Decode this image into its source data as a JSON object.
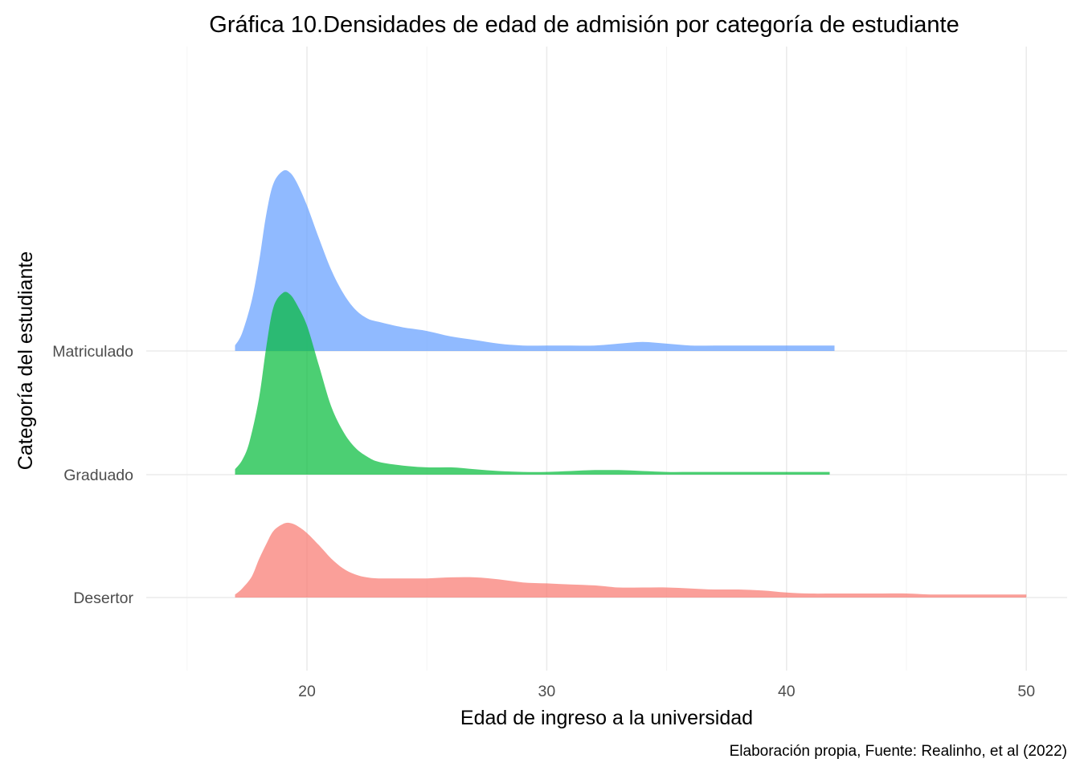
{
  "chart_data": {
    "type": "area",
    "subtype": "ridgeline-density",
    "title": "Gráfica 10.Densidades de edad de admisión por categoría de estudiante",
    "xlabel": "Edad de ingreso a la universidad",
    "ylabel": "Categoría del estudiante",
    "caption": "Elaboración propia, Fuente: Realinho, et al (2022)",
    "xlim": [
      15,
      53
    ],
    "x_ticks": [
      20,
      30,
      40,
      50
    ],
    "categories": [
      "Desertor",
      "Graduado",
      "Matriculado"
    ],
    "grid": true,
    "legend": "none",
    "series": [
      {
        "category": "Desertor",
        "color": "#F8766D",
        "opacity": 0.7,
        "ridge_height": 0.82,
        "x": [
          17.0,
          17.3,
          17.7,
          18.0,
          18.3,
          18.6,
          19.0,
          19.3,
          19.6,
          20.0,
          20.5,
          21.0,
          21.5,
          22.0,
          22.5,
          23.0,
          24.0,
          25.0,
          26.0,
          27.0,
          28.0,
          29.0,
          30.0,
          31.0,
          32.0,
          33.0,
          34.0,
          35.0,
          36.0,
          37.0,
          38.0,
          39.0,
          40.0,
          41.0,
          42.0,
          43.0,
          44.0,
          45.0,
          46.0,
          47.0,
          48.0,
          49.0,
          50.0
        ],
        "y": [
          0.03,
          0.09,
          0.21,
          0.38,
          0.53,
          0.66,
          0.73,
          0.74,
          0.71,
          0.64,
          0.52,
          0.39,
          0.29,
          0.23,
          0.2,
          0.19,
          0.19,
          0.19,
          0.2,
          0.2,
          0.18,
          0.15,
          0.14,
          0.13,
          0.12,
          0.1,
          0.1,
          0.1,
          0.09,
          0.08,
          0.08,
          0.07,
          0.05,
          0.04,
          0.04,
          0.04,
          0.04,
          0.04,
          0.03,
          0.03,
          0.03,
          0.03,
          0.03
        ]
      },
      {
        "category": "Graduado",
        "color": "#00BA38",
        "opacity": 0.7,
        "ridge_height": 1.48,
        "x": [
          17.0,
          17.3,
          17.6,
          18.0,
          18.3,
          18.6,
          19.0,
          19.3,
          19.6,
          20.0,
          20.5,
          21.0,
          21.5,
          22.0,
          22.5,
          23.0,
          24.0,
          25.0,
          26.0,
          27.0,
          28.0,
          29.0,
          30.0,
          31.0,
          32.0,
          33.0,
          34.0,
          35.0,
          36.0,
          37.0,
          38.0,
          39.0,
          40.0,
          41.0,
          41.8
        ],
        "y": [
          0.03,
          0.08,
          0.18,
          0.42,
          0.7,
          0.92,
          1.0,
          0.99,
          0.93,
          0.82,
          0.6,
          0.38,
          0.24,
          0.15,
          0.1,
          0.07,
          0.05,
          0.04,
          0.04,
          0.03,
          0.02,
          0.015,
          0.015,
          0.02,
          0.025,
          0.025,
          0.02,
          0.015,
          0.015,
          0.015,
          0.015,
          0.015,
          0.015,
          0.015,
          0.015
        ]
      },
      {
        "category": "Matriculado",
        "color": "#619CFF",
        "opacity": 0.7,
        "ridge_height": 1.48,
        "x": [
          17.0,
          17.3,
          17.7,
          18.0,
          18.3,
          18.6,
          19.0,
          19.3,
          19.6,
          20.0,
          20.5,
          21.0,
          21.5,
          22.0,
          22.5,
          23.0,
          24.0,
          25.0,
          26.0,
          27.0,
          28.0,
          29.0,
          30.0,
          31.0,
          32.0,
          33.0,
          34.0,
          35.0,
          36.0,
          37.0,
          38.0,
          39.0,
          40.0,
          41.0,
          42.0
        ],
        "y": [
          0.03,
          0.1,
          0.28,
          0.49,
          0.75,
          0.92,
          0.99,
          0.98,
          0.92,
          0.8,
          0.62,
          0.45,
          0.32,
          0.23,
          0.18,
          0.16,
          0.13,
          0.11,
          0.08,
          0.06,
          0.04,
          0.03,
          0.03,
          0.03,
          0.03,
          0.04,
          0.05,
          0.04,
          0.03,
          0.03,
          0.03,
          0.03,
          0.03,
          0.03,
          0.03
        ]
      }
    ]
  }
}
